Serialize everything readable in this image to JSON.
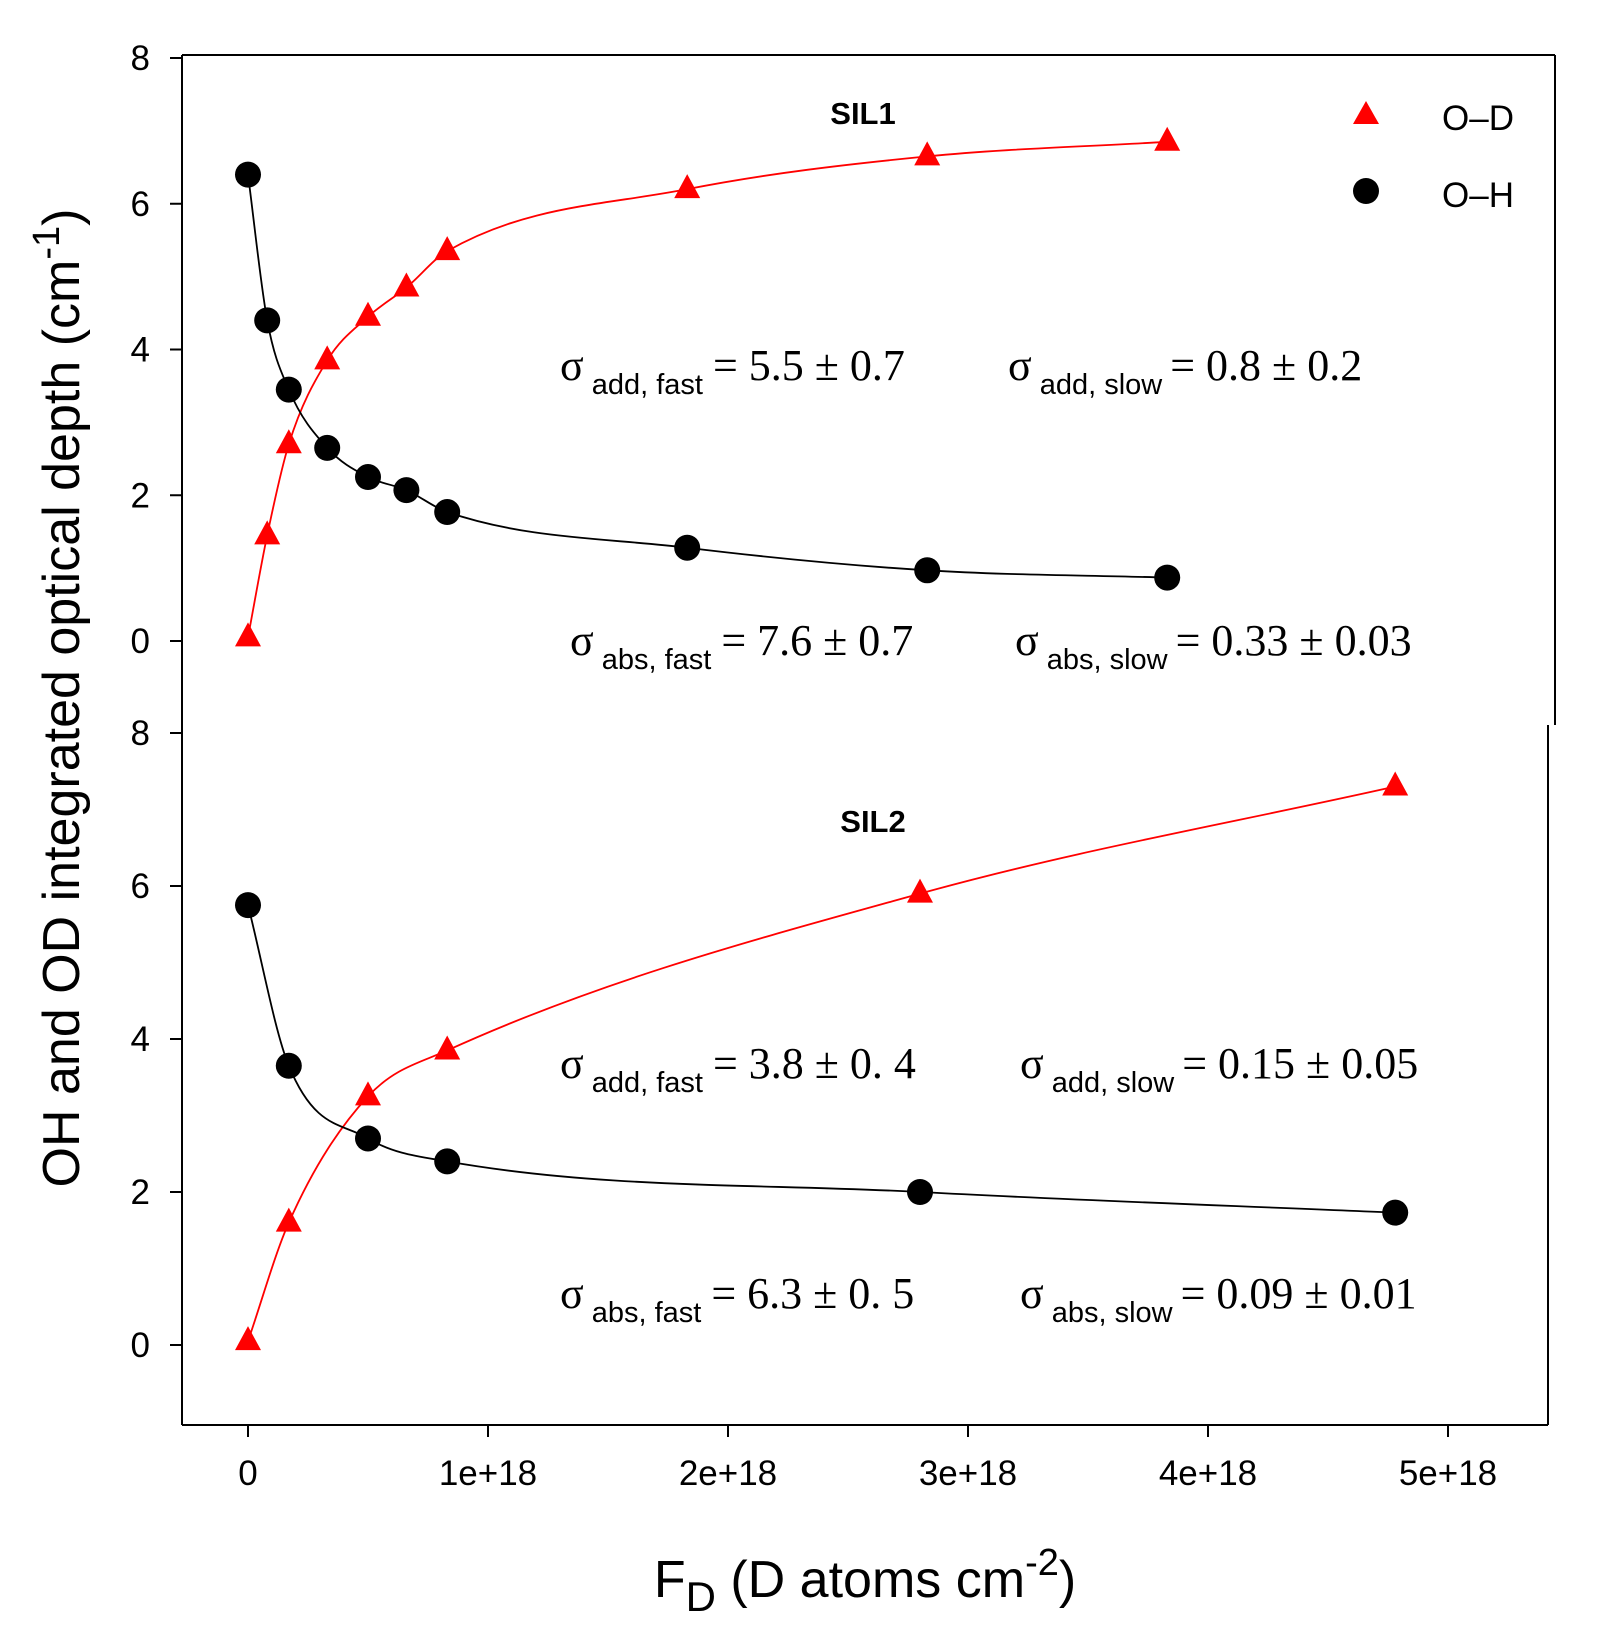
{
  "figure": {
    "ylabel": "OH and OD integrated optical depth (cm",
    "ylabel_sup": "-1",
    "ylabel_close": ")",
    "xlabel_main": "F",
    "xlabel_sub": "D",
    "xlabel_rest": " (D atoms cm",
    "xlabel_sup": "-2",
    "xlabel_close": ")"
  },
  "legend": {
    "od_label": "O–D",
    "oh_label": "O–H"
  },
  "colors": {
    "od": "#ff0000",
    "oh": "#000000"
  },
  "chart_data": [
    {
      "type": "scatter",
      "title": "SIL1",
      "xlim": [
        -2.7e+17,
        5.45e+18
      ],
      "ylim": [
        0,
        8
      ],
      "yticks": [
        0,
        2,
        4,
        6,
        8
      ],
      "ytick_labels": [
        "0",
        "2",
        "4",
        "6",
        "8"
      ],
      "series": [
        {
          "name": "O–D",
          "marker": "triangle",
          "x": [
            0,
            8e+16,
            1.7e+17,
            3.3e+17,
            5e+17,
            6.6e+17,
            8.3e+17,
            1.83e+18,
            2.83e+18,
            3.83e+18
          ],
          "y": [
            0.05,
            1.45,
            2.7,
            3.85,
            4.45,
            4.85,
            5.35,
            6.2,
            6.65,
            6.85
          ]
        },
        {
          "name": "O–H",
          "marker": "circle",
          "x": [
            0,
            8e+16,
            1.7e+17,
            3.3e+17,
            5e+17,
            6.6e+17,
            8.3e+17,
            1.83e+18,
            2.83e+18,
            3.83e+18
          ],
          "y": [
            6.4,
            4.4,
            3.45,
            2.65,
            2.25,
            2.07,
            1.77,
            1.28,
            0.97,
            0.87
          ]
        }
      ],
      "annotations": [
        {
          "symbol": "σ",
          "sub": "add, fast",
          "text": "= 5.5 ± 0.7"
        },
        {
          "symbol": "σ",
          "sub": "add, slow",
          "text": "= 0.8 ± 0.2"
        },
        {
          "symbol": "σ",
          "sub": "abs, fast",
          "text": "= 7.6 ± 0.7"
        },
        {
          "symbol": "σ",
          "sub": "abs, slow",
          "text": "= 0.33 ± 0.03"
        }
      ]
    },
    {
      "type": "scatter",
      "title": "SIL2",
      "xlim": [
        -2.7e+17,
        5.45e+18
      ],
      "ylim": [
        -1.1,
        8
      ],
      "yticks": [
        0,
        2,
        4,
        6,
        8
      ],
      "ytick_labels": [
        "0",
        "2",
        "4",
        "6",
        "8"
      ],
      "xticks": [
        0,
        1e+18,
        2e+18,
        3e+18,
        4e+18,
        5e+18
      ],
      "xtick_labels": [
        "0",
        "1e+18",
        "2e+18",
        "3e+18",
        "4e+18",
        "5e+18"
      ],
      "series": [
        {
          "name": "O–D",
          "marker": "triangle",
          "x": [
            0,
            1.7e+17,
            5e+17,
            8.3e+17,
            2.8e+18,
            4.78e+18
          ],
          "y": [
            0.05,
            1.6,
            3.25,
            3.85,
            5.9,
            7.3
          ]
        },
        {
          "name": "O–H",
          "marker": "circle",
          "x": [
            0,
            1.7e+17,
            5e+17,
            8.3e+17,
            2.8e+18,
            4.78e+18
          ],
          "y": [
            5.75,
            3.65,
            2.7,
            2.4,
            2.0,
            1.73
          ]
        }
      ],
      "annotations": [
        {
          "symbol": "σ",
          "sub": "add, fast",
          "text": "= 3.8 ± 0. 4"
        },
        {
          "symbol": "σ",
          "sub": "add, slow",
          "text": "= 0.15 ± 0.05"
        },
        {
          "symbol": "σ",
          "sub": "abs, fast",
          "text": "= 6.3 ± 0. 5"
        },
        {
          "symbol": "σ",
          "sub": "abs, slow",
          "text": "= 0.09 ± 0.01"
        }
      ]
    }
  ]
}
